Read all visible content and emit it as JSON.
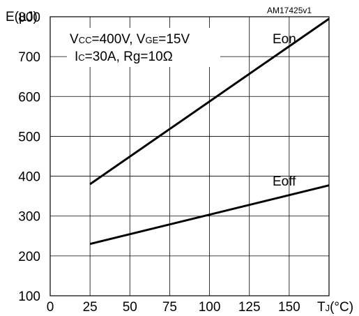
{
  "chart_data": {
    "type": "line",
    "reference_id": "AM17425v1",
    "ylabel": "E(µJ)",
    "xlabel": {
      "main": "T",
      "sub": "J",
      "unit": "(°C)"
    },
    "xlim": [
      0,
      175
    ],
    "ylim": [
      100,
      800
    ],
    "x_ticks": [
      "0",
      "25",
      "50",
      "75",
      "100",
      "125",
      "150"
    ],
    "y_ticks": [
      "100",
      "200",
      "300",
      "400",
      "500",
      "600",
      "700",
      "800"
    ],
    "grid": true,
    "conditions": {
      "line1": {
        "v1": "V",
        "v1_sub": "CC",
        "v1_val": "=400V, ",
        "v2": "V",
        "v2_sub": "GE",
        "v2_val": "=15V"
      },
      "line2": {
        "i": "I",
        "i_sub": "C",
        "i_val": "=30A, Rg=10Ω"
      }
    },
    "series": [
      {
        "name": "Eon",
        "x": [
          25,
          175
        ],
        "y": [
          380,
          795
        ],
        "color": "#000000"
      },
      {
        "name": "Eoff",
        "x": [
          25,
          175
        ],
        "y": [
          230,
          377
        ],
        "color": "#000000"
      }
    ]
  }
}
